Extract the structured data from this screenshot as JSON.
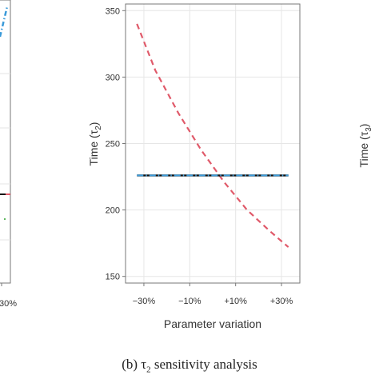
{
  "chart_data": [
    {
      "type": "line",
      "panel": "left (partially visible)",
      "x_tick_labels": [
        "30%"
      ],
      "series": [
        {
          "color": "#3a9ad9",
          "style": "dash-dot"
        },
        {
          "color": "#111111",
          "style": "solid"
        },
        {
          "color": "#e05a6a",
          "style": "solid"
        },
        {
          "color": "#2ca02c",
          "style": "dots"
        }
      ]
    },
    {
      "type": "line",
      "panel": "center",
      "caption_prefix": "(b) τ",
      "caption_sub": "2",
      "caption_suffix": " sensitivity analysis",
      "xlabel": "Parameter variation",
      "ylabel_prefix": "Time (τ",
      "ylabel_sub": "2",
      "ylabel_suffix": ")",
      "x": [
        -0.33,
        0.33
      ],
      "x_ticks": [
        {
          "value": -0.3,
          "label": "−30%"
        },
        {
          "value": -0.1,
          "label": "−10%"
        },
        {
          "value": 0.1,
          "label": "+10%"
        },
        {
          "value": 0.3,
          "label": "+30%"
        }
      ],
      "xlim": [
        -0.38,
        0.38
      ],
      "y_ticks": [
        150,
        200,
        250,
        300,
        350
      ],
      "ylim": [
        145,
        355
      ],
      "grid": true,
      "series": [
        {
          "color": "#e05a6a",
          "style": "dashed",
          "points": [
            [
              -0.33,
              340
            ],
            [
              -0.25,
              305
            ],
            [
              -0.15,
              273
            ],
            [
              -0.05,
              245
            ],
            [
              0.05,
              221
            ],
            [
              0.15,
              200
            ],
            [
              0.25,
              184
            ],
            [
              0.33,
              172
            ]
          ]
        },
        {
          "color": "#111111",
          "style": "solid",
          "points": [
            [
              -0.33,
              226
            ],
            [
              0.33,
              226
            ]
          ]
        },
        {
          "color": "#3a9ad9",
          "style": "dash-dot",
          "points": [
            [
              -0.33,
              226
            ],
            [
              0.33,
              226
            ]
          ]
        }
      ]
    },
    {
      "type": "line",
      "panel": "right (partially visible)",
      "ylabel_prefix": "Time (τ",
      "ylabel_sub": "3",
      "ylabel_suffix": ")"
    }
  ],
  "labels": {
    "left_tick": "30%",
    "center_xlabel": "Parameter variation",
    "caption_main": "(b) τ",
    "caption_sub": "2",
    "caption_rest": " sensitivity analysis"
  }
}
